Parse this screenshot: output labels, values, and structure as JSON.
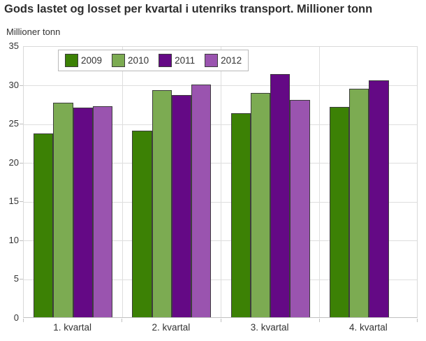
{
  "chart_data": {
    "type": "bar",
    "title": "Gods lastet og losset per kvartal i utenriks transport. Millioner tonn",
    "ylabel": "Millioner tonn",
    "xlabel": "",
    "categories": [
      "1. kvartal",
      "2. kvartal",
      "3. kvartal",
      "4. kvartal"
    ],
    "series": [
      {
        "name": "2009",
        "color": "#3c8105",
        "values": [
          23.7,
          24.0,
          26.3,
          27.1
        ]
      },
      {
        "name": "2010",
        "color": "#7cab52",
        "values": [
          27.6,
          29.2,
          28.9,
          29.4
        ]
      },
      {
        "name": "2011",
        "color": "#640985",
        "values": [
          27.0,
          28.6,
          31.3,
          30.5
        ]
      },
      {
        "name": "2012",
        "color": "#9a54af",
        "values": [
          27.2,
          30.0,
          28.0,
          null
        ]
      }
    ],
    "ylim": [
      0,
      35
    ],
    "y_ticks": [
      0,
      5,
      10,
      15,
      20,
      25,
      30,
      35
    ],
    "grid": true,
    "legend_position": "top-left",
    "bar_border_color": "#3d3d3d",
    "gridline_color": "#dedede",
    "axis_line_color": "#c0c0c0",
    "text_color": "#333333"
  }
}
